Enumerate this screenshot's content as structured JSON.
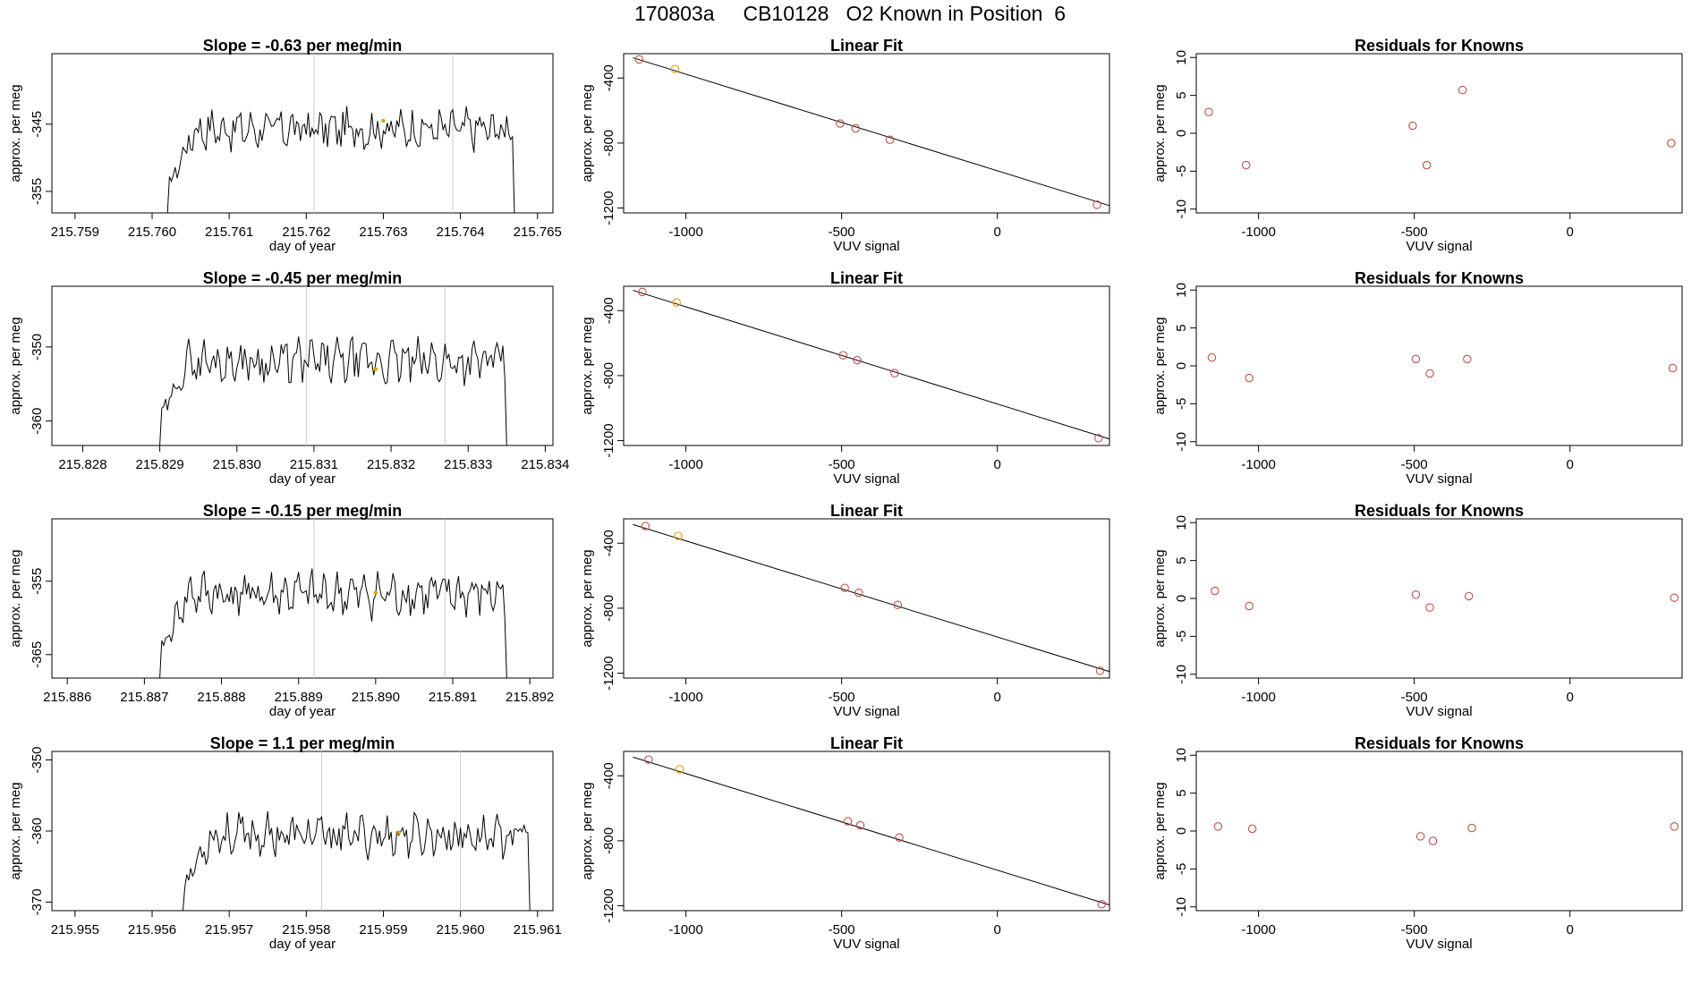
{
  "header": {
    "title": "170803a     CB10128   O2 Known in Position  6"
  },
  "chart_data": [
    {
      "type": "line",
      "title": "Slope =  -0.63  per meg/min",
      "xlabel": "day of year",
      "ylabel": "approx. per meg",
      "xlim": [
        215.7587,
        215.7652
      ],
      "ylim": [
        -358.2,
        -334.5
      ],
      "xticks": [
        "215.759",
        "215.760",
        "215.761",
        "215.762",
        "215.763",
        "215.764",
        "215.765"
      ],
      "yticks": [
        "-345",
        "-355"
      ],
      "vlines": [
        215.7621,
        215.7639
      ],
      "series": [
        {
          "x_start": 215.7602,
          "x_end": 215.7647,
          "y_mean": -345.7,
          "y_amp": 2.3,
          "rise_to": 215.7604,
          "seed": 17
        }
      ],
      "marker": {
        "x": 215.763,
        "y": -344.5
      }
    },
    {
      "type": "scatter",
      "title": "Linear Fit",
      "xlabel": "VUV signal",
      "ylabel": "approx. per meg",
      "xlim": [
        -1200,
        360
      ],
      "ylim": [
        -1230,
        -250
      ],
      "xticks": [
        "-1000",
        "-500",
        "0"
      ],
      "yticks": [
        "-400",
        "-800",
        "-1200"
      ],
      "x": [
        -1150,
        -1035,
        -505,
        -455,
        -345,
        320
      ],
      "y": [
        -285,
        -345,
        -680,
        -710,
        -780,
        -1180
      ],
      "highlight": [
        1
      ],
      "fit": {
        "x": [
          -1170,
          360
        ],
        "y": [
          -275,
          -1185
        ]
      }
    },
    {
      "type": "scatter",
      "title": "Residuals for Knowns",
      "xlabel": "VUV signal",
      "ylabel": "approx. per meg",
      "xlim": [
        -1200,
        360
      ],
      "ylim": [
        -10.5,
        10.5
      ],
      "xticks": [
        "-1000",
        "-500",
        "0"
      ],
      "yticks": [
        "10",
        "5",
        "0",
        "-5",
        "-10"
      ],
      "x": [
        -1160,
        -1040,
        -505,
        -460,
        -345,
        325
      ],
      "y": [
        2.8,
        -4.2,
        1.0,
        -4.2,
        5.7,
        -1.3
      ]
    },
    {
      "type": "line",
      "title": "Slope =  -0.45  per meg/min",
      "xlabel": "day of year",
      "ylabel": "approx. per meg",
      "xlim": [
        215.8276,
        215.8341
      ],
      "ylim": [
        -363.3,
        -341.8
      ],
      "xticks": [
        "215.828",
        "215.829",
        "215.830",
        "215.831",
        "215.832",
        "215.833",
        "215.834"
      ],
      "yticks": [
        "-350",
        "-360"
      ],
      "vlines": [
        215.8309,
        215.8327
      ],
      "series": [
        {
          "x_start": 215.829,
          "x_end": 215.8335,
          "y_mean": -352.0,
          "y_amp": 2.3,
          "rise_to": 215.8292,
          "seed": 29
        }
      ],
      "marker": {
        "x": 215.8318,
        "y": -353.0
      }
    },
    {
      "type": "scatter",
      "title": "Linear Fit",
      "xlabel": "VUV signal",
      "ylabel": "approx. per meg",
      "xlim": [
        -1200,
        360
      ],
      "ylim": [
        -1230,
        -250
      ],
      "xticks": [
        "-1000",
        "-500",
        "0"
      ],
      "yticks": [
        "-400",
        "-800",
        "-1200"
      ],
      "x": [
        -1140,
        -1030,
        -495,
        -450,
        -330,
        325
      ],
      "y": [
        -285,
        -350,
        -675,
        -705,
        -785,
        -1185
      ],
      "highlight": [
        1
      ],
      "fit": {
        "x": [
          -1170,
          360
        ],
        "y": [
          -275,
          -1190
        ]
      }
    },
    {
      "type": "scatter",
      "title": "Residuals for Knowns",
      "xlabel": "VUV signal",
      "ylabel": "approx. per meg",
      "xlim": [
        -1200,
        360
      ],
      "ylim": [
        -10.5,
        10.5
      ],
      "xticks": [
        "-1000",
        "-500",
        "0"
      ],
      "yticks": [
        "10",
        "5",
        "0",
        "-5",
        "-10"
      ],
      "x": [
        -1150,
        -1030,
        -495,
        -450,
        -330,
        330
      ],
      "y": [
        1.1,
        -1.6,
        0.9,
        -1.0,
        0.9,
        -0.3
      ]
    },
    {
      "type": "line",
      "title": "Slope =  -0.15  per meg/min",
      "xlabel": "day of year",
      "ylabel": "approx. per meg",
      "xlim": [
        215.8858,
        215.8923
      ],
      "ylim": [
        -368.2,
        -346.5
      ],
      "xticks": [
        "215.886",
        "215.887",
        "215.888",
        "215.889",
        "215.890",
        "215.891",
        "215.892"
      ],
      "yticks": [
        "-355",
        "-365"
      ],
      "vlines": [
        215.8892,
        215.8909
      ],
      "series": [
        {
          "x_start": 215.8872,
          "x_end": 215.8917,
          "y_mean": -356.8,
          "y_amp": 2.3,
          "rise_to": 215.8873,
          "seed": 41
        }
      ],
      "marker": {
        "x": 215.89,
        "y": -356.6
      }
    },
    {
      "type": "scatter",
      "title": "Linear Fit",
      "xlabel": "VUV signal",
      "ylabel": "approx. per meg",
      "xlim": [
        -1200,
        360
      ],
      "ylim": [
        -1230,
        -250
      ],
      "xticks": [
        "-1000",
        "-500",
        "0"
      ],
      "yticks": [
        "-400",
        "-800",
        "-1200"
      ],
      "x": [
        -1130,
        -1025,
        -490,
        -445,
        -320,
        330
      ],
      "y": [
        -295,
        -355,
        -675,
        -705,
        -780,
        -1185
      ],
      "highlight": [
        1
      ],
      "fit": {
        "x": [
          -1170,
          360
        ],
        "y": [
          -285,
          -1190
        ]
      }
    },
    {
      "type": "scatter",
      "title": "Residuals for Knowns",
      "xlabel": "VUV signal",
      "ylabel": "approx. per meg",
      "xlim": [
        -1200,
        360
      ],
      "ylim": [
        -10.5,
        10.5
      ],
      "xticks": [
        "-1000",
        "-500",
        "0"
      ],
      "yticks": [
        "10",
        "5",
        "0",
        "-5",
        "-10"
      ],
      "x": [
        -1140,
        -1030,
        -495,
        -450,
        -325,
        335
      ],
      "y": [
        1.0,
        -1.0,
        0.5,
        -1.2,
        0.3,
        0.1
      ]
    },
    {
      "type": "line",
      "title": "Slope =  1.1  per meg/min",
      "xlabel": "day of year",
      "ylabel": "approx. per meg",
      "xlim": [
        215.9547,
        215.9612
      ],
      "ylim": [
        -371.2,
        -348.8
      ],
      "xticks": [
        "215.955",
        "215.956",
        "215.957",
        "215.958",
        "215.959",
        "215.960",
        "215.961"
      ],
      "yticks": [
        "-350",
        "-360",
        "-370"
      ],
      "vlines": [
        215.9582,
        215.96
      ],
      "series": [
        {
          "x_start": 215.9564,
          "x_end": 215.9609,
          "y_mean": -360.6,
          "y_amp": 2.2,
          "rise_to": 215.9565,
          "seed": 53
        }
      ],
      "marker": {
        "x": 215.9592,
        "y": -360.2
      }
    },
    {
      "type": "scatter",
      "title": "Linear Fit",
      "xlabel": "VUV signal",
      "ylabel": "approx. per meg",
      "xlim": [
        -1200,
        360
      ],
      "ylim": [
        -1230,
        -250
      ],
      "xticks": [
        "-1000",
        "-500",
        "0"
      ],
      "yticks": [
        "-400",
        "-800",
        "-1200"
      ],
      "x": [
        -1120,
        -1020,
        -480,
        -440,
        -315,
        335
      ],
      "y": [
        -300,
        -360,
        -680,
        -705,
        -780,
        -1190
      ],
      "highlight": [
        1
      ],
      "fit": {
        "x": [
          -1170,
          360
        ],
        "y": [
          -285,
          -1195
        ]
      }
    },
    {
      "type": "scatter",
      "title": "Residuals for Knowns",
      "xlabel": "VUV signal",
      "ylabel": "approx. per meg",
      "xlim": [
        -1200,
        360
      ],
      "ylim": [
        -10.5,
        10.5
      ],
      "xticks": [
        "-1000",
        "-500",
        "0"
      ],
      "yticks": [
        "10",
        "5",
        "0",
        "-5",
        "-10"
      ],
      "x": [
        -1130,
        -1020,
        -480,
        -440,
        -315,
        335
      ],
      "y": [
        0.6,
        0.3,
        -0.7,
        -1.3,
        0.4,
        0.6
      ]
    }
  ],
  "colors": {
    "line": "#000000",
    "point": "#c0504d",
    "highlight": "#e69f00",
    "vline": "#cccccc",
    "fit": "#000000"
  }
}
